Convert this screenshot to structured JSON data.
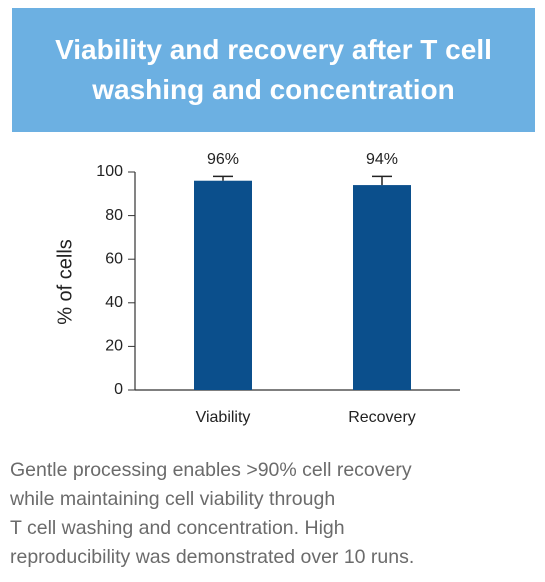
{
  "chart_data": {
    "type": "bar",
    "title": "Viability and recovery after T cell washing and concentration",
    "y_label": "% of cells",
    "categories": [
      "Viability",
      "Recovery"
    ],
    "values": [
      96,
      94
    ],
    "value_labels": [
      "96%",
      "94%"
    ],
    "errors": [
      2,
      4
    ],
    "color": "#0b4f8c",
    "ylim": [
      0,
      100
    ],
    "yticks": [
      0,
      20,
      40,
      60,
      80,
      100
    ],
    "grid": false
  },
  "caption": [
    "Gentle processing enables >90% cell recovery",
    "while maintaining cell viability through",
    "T cell washing and concentration. High",
    "reproducibility was demonstrated over 10 runs."
  ]
}
